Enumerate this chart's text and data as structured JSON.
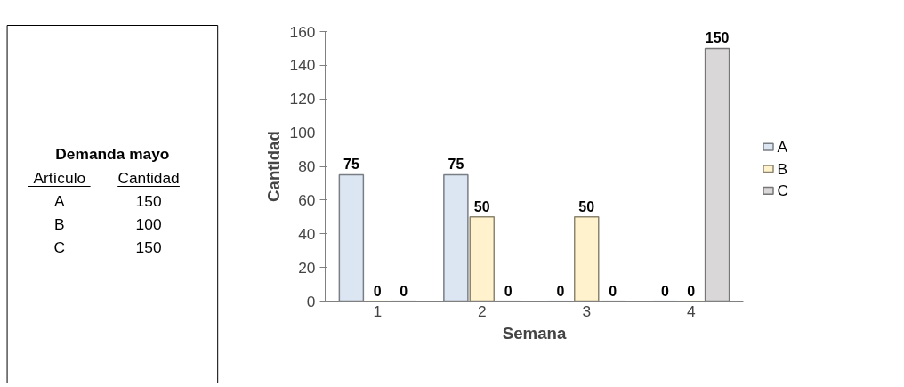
{
  "chart_data": [
    {
      "type": "other",
      "title": "Demanda mayo",
      "annotations": [
        "Artículo",
        "Cantidad"
      ],
      "categories": [
        "A",
        "B",
        "C"
      ],
      "values": [
        150,
        100,
        150
      ],
      "data_labels": true
    },
    {
      "type": "bar",
      "categories": [
        "1",
        "2",
        "3",
        "4"
      ],
      "xlabel": "Semana",
      "ylabel": "Cantidad",
      "ylim": [
        0,
        160
      ],
      "yticks": [
        0,
        20,
        40,
        60,
        80,
        100,
        120,
        140,
        160
      ],
      "grid": false,
      "legend": "right",
      "data_labels": true,
      "series": [
        {
          "name": "A",
          "color": "#dce6f2",
          "values": [
            75,
            75,
            0,
            0
          ]
        },
        {
          "name": "B",
          "color": "#fff2cc",
          "values": [
            0,
            50,
            50,
            0
          ]
        },
        {
          "name": "C",
          "color": "#d9d7d7",
          "values": [
            0,
            0,
            0,
            150
          ]
        }
      ]
    }
  ]
}
